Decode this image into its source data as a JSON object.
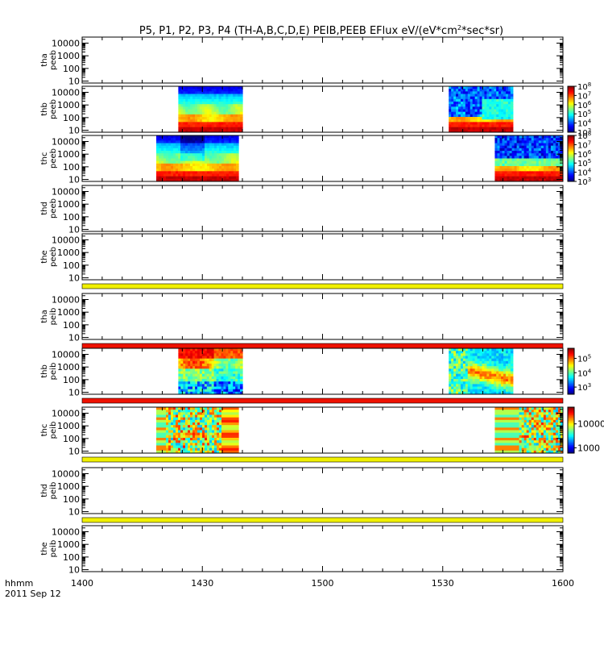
{
  "chart_data": {
    "type": "heatmap",
    "title": "P5, P1, P2, P3, P4 (TH-A,B,C,D,E) PEIB,PEEB EFlux eV/(eV*cm²*sec*sr)",
    "title_parts": {
      "before": "P5, P1, P2, P3, P4 (TH-A,B,C,D,E) PEIB,PEEB EFlux eV/(eV*cm",
      "superscript": "2",
      "after": "*sec*sr)"
    },
    "time_axis": {
      "label_line1": "hhmm",
      "label_line2": "2011 Sep 12",
      "range_minutes": [
        840,
        960
      ],
      "tick_minutes": [
        840,
        870,
        900,
        930,
        960
      ],
      "tick_labels": [
        "1400",
        "1430",
        "1500",
        "1530",
        "1600"
      ]
    },
    "energy_axis": {
      "scale": "log",
      "range_eV": [
        7,
        30000
      ],
      "tick_values": [
        10,
        100,
        1000,
        10000
      ],
      "tick_labels": [
        "10",
        "100",
        "1000",
        "10000"
      ]
    },
    "panels": [
      {
        "probe": "tha",
        "product": "peeb",
        "label_line1": "tha",
        "label_line2": "peeb",
        "intervals": []
      },
      {
        "probe": "thb",
        "product": "peeb",
        "label_line1": "thb",
        "label_line2": "peeb",
        "intervals": [
          {
            "start": 864.0,
            "end": 880.0,
            "style": "electron-b"
          },
          {
            "start": 931.5,
            "end": 947.5,
            "style": "electron-b2"
          }
        ],
        "colorbar": {
          "min_exp": 3,
          "max_exp": 8,
          "tick_labels": [
            {
              "base": "10",
              "exp": "3"
            },
            {
              "base": "10",
              "exp": "4"
            },
            {
              "base": "10",
              "exp": "5"
            },
            {
              "base": "10",
              "exp": "6"
            },
            {
              "base": "10",
              "exp": "7"
            },
            {
              "base": "10",
              "exp": "8"
            }
          ]
        }
      },
      {
        "probe": "thc",
        "product": "peeb",
        "label_line1": "thc",
        "label_line2": "peeb",
        "intervals": [
          {
            "start": 858.5,
            "end": 879.0,
            "style": "electron-c"
          },
          {
            "start": 943.0,
            "end": 960.0,
            "style": "electron-c2"
          }
        ],
        "colorbar": {
          "min_exp": 3,
          "max_exp": 8,
          "tick_labels": [
            {
              "base": "10",
              "exp": "3"
            },
            {
              "base": "10",
              "exp": "4"
            },
            {
              "base": "10",
              "exp": "5"
            },
            {
              "base": "10",
              "exp": "6"
            },
            {
              "base": "10",
              "exp": "7"
            },
            {
              "base": "10",
              "exp": "8"
            }
          ]
        }
      },
      {
        "probe": "thd",
        "product": "peeb",
        "label_line1": "thd",
        "label_line2": "peeb",
        "intervals": []
      },
      {
        "probe": "the",
        "product": "peeb",
        "label_line1": "the",
        "label_line2": "peeb",
        "intervals": [],
        "strip_below": "#f0f000"
      },
      {
        "probe": "tha",
        "product": "peib",
        "label_line1": "tha",
        "label_line2": "peib",
        "intervals": [],
        "strip_below": "#ee1100"
      },
      {
        "probe": "thb",
        "product": "peib",
        "label_line1": "thb",
        "label_line2": "peib",
        "intervals": [
          {
            "start": 864.0,
            "end": 880.0,
            "style": "ion-b"
          },
          {
            "start": 931.5,
            "end": 947.5,
            "style": "ion-b2"
          }
        ],
        "strip_below": "#ee1100",
        "colorbar": {
          "min_exp": 2.5,
          "max_exp": 5.7,
          "tick_labels": [
            {
              "base": "10",
              "exp": "3"
            },
            {
              "base": "10",
              "exp": "4"
            },
            {
              "base": "10",
              "exp": "5"
            }
          ]
        }
      },
      {
        "probe": "thc",
        "product": "peib",
        "label_line1": "thc",
        "label_line2": "peib",
        "intervals": [
          {
            "start": 858.5,
            "end": 879.0,
            "style": "ion-c"
          },
          {
            "start": 943.0,
            "end": 960.0,
            "style": "ion-c2"
          }
        ],
        "strip_below": "#f0f000",
        "colorbar": {
          "min": 600,
          "max": 50000,
          "scale": "log",
          "tick_labels": [
            {
              "base": "1000",
              "exp": ""
            },
            {
              "base": "10000",
              "exp": ""
            }
          ]
        }
      },
      {
        "probe": "thd",
        "product": "peib",
        "label_line1": "thd",
        "label_line2": "peib",
        "intervals": [],
        "strip_below": "#f0f000"
      },
      {
        "probe": "the",
        "product": "peib",
        "label_line1": "the",
        "label_line2": "peib",
        "intervals": []
      }
    ],
    "grid": false,
    "legend": "colorbars-right"
  }
}
